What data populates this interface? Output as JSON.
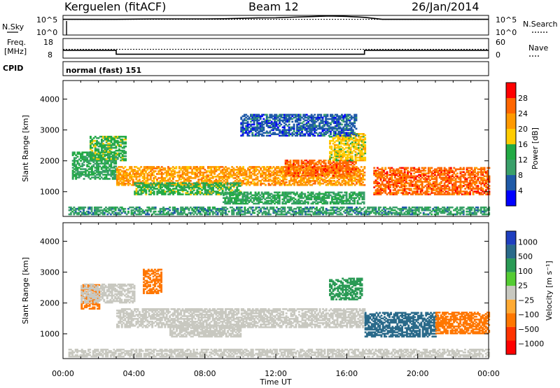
{
  "header": {
    "station": "Kerguelen (fitACF)",
    "beam": "Beam 12",
    "date": "26/Jan/2014"
  },
  "side_labels": {
    "nsky": "N.Sky",
    "nsearch": "N.Search",
    "freq_line1": "Freq.",
    "freq_line2": "[MHz]",
    "nave": "Nave",
    "cpid": "CPID"
  },
  "cpid_value": "normal (fast) 151",
  "colors": {
    "power_scale": [
      "#0000ff",
      "#1f5aa8",
      "#3aa06a",
      "#22aa44",
      "#ffcc00",
      "#ff9900",
      "#ff6600",
      "#ff0000"
    ],
    "velocity_scale": [
      "#1f3fbf",
      "#2a6a8a",
      "#2a9a55",
      "#55cc33",
      "#c8c8c0",
      "#ffaa33",
      "#ff7700",
      "#ff3300",
      "#ff0000"
    ],
    "ground_scatter": "#c8c8c0"
  },
  "chart_data": [
    {
      "type": "line",
      "panel": "noise",
      "left_ticks": [
        "10^5",
        "10^0"
      ],
      "right_ticks": [
        "10^5",
        "10^0"
      ],
      "series": [
        {
          "name": "N.Sky",
          "style": "solid",
          "x": [
            0,
            1,
            2,
            3,
            4,
            5,
            6,
            7,
            8,
            9,
            10,
            11,
            12,
            13,
            14,
            15,
            16,
            17,
            18,
            19,
            20,
            21,
            22,
            23,
            24
          ],
          "y": [
            0.8,
            0.8,
            0.8,
            0.8,
            0.81,
            0.82,
            0.82,
            0.82,
            0.82,
            0.83,
            0.85,
            0.87,
            0.88,
            0.91,
            0.94,
            0.97,
            0.95,
            0.9,
            0.8,
            0.8,
            0.8,
            0.8,
            0.8,
            0.8,
            0.8
          ]
        },
        {
          "name": "N.Search",
          "style": "dotted",
          "x": [
            0,
            24
          ],
          "y": [
            0.8,
            0.8
          ]
        }
      ]
    },
    {
      "type": "line",
      "panel": "frequency",
      "left_ticks": [
        "18",
        "8"
      ],
      "right_ticks": [
        "60",
        "0"
      ],
      "series": [
        {
          "name": "Freq.",
          "style": "solid",
          "x": [
            0,
            3,
            3,
            17,
            17,
            24
          ],
          "y": [
            12,
            12,
            10,
            10,
            12,
            12
          ]
        },
        {
          "name": "Nave",
          "style": "dotted",
          "x": [
            0,
            24
          ],
          "y": [
            12.5,
            12.5
          ]
        }
      ]
    },
    {
      "type": "heatmap",
      "panel": "power",
      "ylabel": "Slant Range [km]",
      "ylim": [
        200,
        4600
      ],
      "yticks": [
        1000,
        2000,
        3000,
        4000
      ],
      "xlim": [
        0,
        24
      ],
      "colorbar": {
        "label": "Power [dB]",
        "ticks": [
          4,
          8,
          12,
          16,
          20,
          24,
          28
        ],
        "range": [
          0,
          32
        ]
      },
      "regions": [
        {
          "t0": 0.3,
          "t1": 24,
          "r0": 250,
          "r1": 500,
          "value": 10
        },
        {
          "t0": 0.5,
          "t1": 3.0,
          "r0": 1400,
          "r1": 2300,
          "value": 12
        },
        {
          "t0": 1.5,
          "t1": 3.5,
          "r0": 2000,
          "r1": 2800,
          "value": 14
        },
        {
          "t0": 3.0,
          "t1": 17.0,
          "r0": 1200,
          "r1": 1800,
          "value": 22
        },
        {
          "t0": 4.0,
          "t1": 10.0,
          "r0": 900,
          "r1": 1300,
          "value": 14
        },
        {
          "t0": 12.5,
          "t1": 16.5,
          "r0": 1500,
          "r1": 2000,
          "value": 26
        },
        {
          "t0": 15.0,
          "t1": 17.0,
          "r0": 2000,
          "r1": 2900,
          "value": 18
        },
        {
          "t0": 17.5,
          "t1": 24.0,
          "r0": 900,
          "r1": 1800,
          "value": 26
        },
        {
          "t0": 9.0,
          "t1": 17.0,
          "r0": 600,
          "r1": 1000,
          "value": 12
        },
        {
          "t0": 10.0,
          "t1": 16.5,
          "r0": 2800,
          "r1": 3500,
          "value": 6
        }
      ]
    },
    {
      "type": "heatmap",
      "panel": "velocity",
      "ylabel": "Slant Range [km]",
      "ylim": [
        200,
        4600
      ],
      "yticks": [
        1000,
        2000,
        3000,
        4000
      ],
      "xlabel": "Time UT",
      "xlim": [
        0,
        24
      ],
      "xticks": [
        "00:00",
        "04:00",
        "08:00",
        "12:00",
        "16:00",
        "20:00",
        "00:00"
      ],
      "colorbar": {
        "label": "Velocity [m s⁻¹]",
        "ticks": [
          "1000",
          "500",
          "100",
          "25",
          "−25",
          "−100",
          "−500",
          "−1000"
        ]
      },
      "regions": [
        {
          "t0": 0.3,
          "t1": 24,
          "r0": 250,
          "r1": 500,
          "value": 0
        },
        {
          "t0": 1.0,
          "t1": 2.0,
          "r0": 1800,
          "r1": 2600,
          "value": -120
        },
        {
          "t0": 3.0,
          "t1": 17.0,
          "r0": 1200,
          "r1": 1800,
          "value": 0
        },
        {
          "t0": 1.0,
          "t1": 4.0,
          "r0": 2000,
          "r1": 2600,
          "value": 0
        },
        {
          "t0": 4.5,
          "t1": 5.5,
          "r0": 2300,
          "r1": 3100,
          "value": -200
        },
        {
          "t0": 6.0,
          "t1": 10.0,
          "r0": 900,
          "r1": 1300,
          "value": 0
        },
        {
          "t0": 15.0,
          "t1": 16.8,
          "r0": 2100,
          "r1": 2800,
          "value": 80
        },
        {
          "t0": 17.0,
          "t1": 21.0,
          "r0": 900,
          "r1": 1700,
          "value": 300
        },
        {
          "t0": 21.0,
          "t1": 24.0,
          "r0": 1000,
          "r1": 1700,
          "value": -200
        }
      ]
    }
  ]
}
